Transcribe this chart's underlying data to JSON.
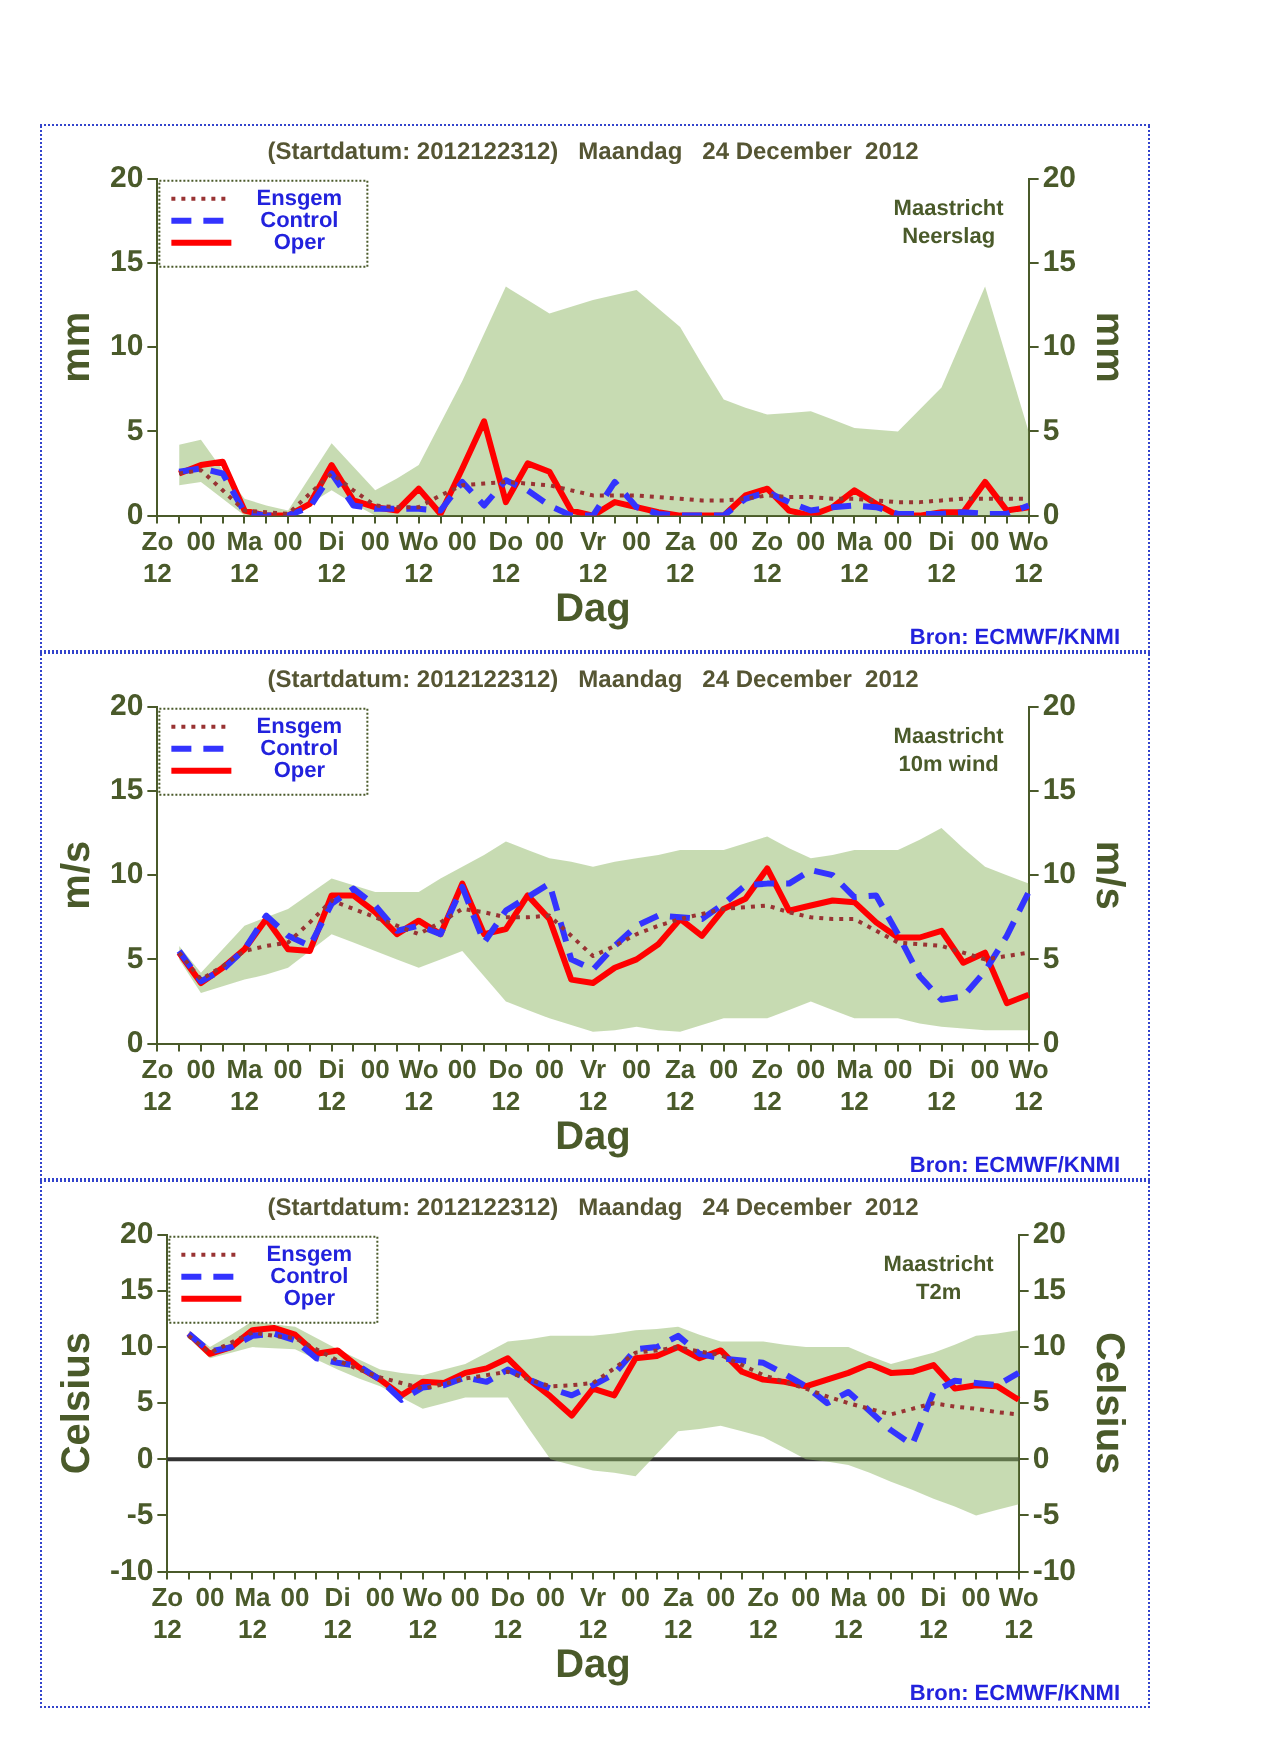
{
  "chart_data": [
    {
      "type": "line",
      "title": "(Startdatum: 2012122312)   Maandag   24 December  2012",
      "xlabel": "Dag",
      "ylabel": "mm",
      "y2label": "mm",
      "annotations": [
        "Maastricht",
        "Neerslag",
        "Bron: ECMWF/KNMI"
      ],
      "categories": [
        "Zo\n12",
        null,
        "00",
        null,
        "Ma\n12",
        null,
        "00",
        null,
        "Di\n12",
        null,
        "00",
        null,
        "Wo\n12",
        null,
        "00",
        null,
        "Do\n12",
        null,
        "00",
        null,
        "Vr\n12",
        null,
        "00",
        null,
        "Za\n12",
        null,
        "00",
        null,
        "Zo\n12",
        null,
        "00",
        null,
        "Ma\n12",
        null,
        "00",
        null,
        "Di\n12",
        null,
        "00",
        null,
        "Wo\n12"
      ],
      "ylim": [
        0,
        20
      ],
      "yticks": [
        0,
        5,
        10,
        15,
        20
      ],
      "y2lim": [
        0,
        20
      ],
      "y2ticks": [
        0,
        5,
        10,
        15,
        20
      ],
      "grid": false,
      "legend": "top left",
      "marker": "none",
      "series": [
        {
          "name": "Ensgem",
          "color": "#993333",
          "line_style": "dotted",
          "values": [
            null,
            2.5,
            2.7,
            1.5,
            0.3,
            0.2,
            0.1,
            1.3,
            2.5,
            1.5,
            0.6,
            0.5,
            0.5,
            1.2,
            1.8,
            1.9,
            2.0,
            1.9,
            1.8,
            1.5,
            1.2,
            1.2,
            1.2,
            1.1,
            1.0,
            0.9,
            0.9,
            1.0,
            1.2,
            1.1,
            1.1,
            1.0,
            1.0,
            0.9,
            0.8,
            0.8,
            0.9,
            1.0,
            1.0,
            1.0,
            1.0
          ],
          "lower": [
            null,
            1.8,
            2.0,
            1.0,
            0,
            0,
            0,
            0.7,
            1.5,
            0.7,
            0,
            0,
            0,
            0,
            0,
            0,
            0,
            0,
            0,
            0,
            0,
            0,
            0,
            0,
            0,
            0,
            0,
            0,
            0,
            0,
            0,
            0,
            0,
            0,
            0,
            0,
            0,
            0,
            0,
            0,
            0
          ],
          "upper": [
            null,
            4.2,
            4.5,
            2.7,
            1.0,
            0.6,
            0.3,
            2.3,
            4.3,
            2.9,
            1.5,
            2.2,
            3.0,
            5.5,
            8.0,
            10.8,
            13.6,
            12.8,
            12.0,
            12.4,
            12.8,
            13.1,
            13.4,
            12.3,
            11.2,
            9.0,
            6.9,
            6.4,
            6.0,
            6.1,
            6.2,
            5.7,
            5.2,
            5.1,
            5.0,
            6.3,
            7.6,
            10.6,
            13.6,
            9.3,
            5.0
          ]
        },
        {
          "name": "Control",
          "color": "#3333ff",
          "line_style": "dashed",
          "values": [
            null,
            2.6,
            2.8,
            2.5,
            0.2,
            0,
            0,
            0.5,
            2.5,
            0.6,
            0.4,
            0.4,
            0.4,
            0.3,
            2.0,
            0.6,
            2.1,
            1.5,
            0.6,
            0,
            0,
            2.0,
            0.5,
            0.1,
            0,
            0,
            0,
            1.0,
            1.4,
            0.8,
            0.3,
            0.5,
            0.6,
            0.5,
            0.1,
            0.1,
            0.1,
            0.2,
            0.1,
            0.1,
            0.6
          ]
        },
        {
          "name": "Oper",
          "color": "#ff0000",
          "line_style": "solid",
          "values": [
            null,
            2.5,
            3.0,
            3.2,
            0.3,
            0,
            0,
            0.7,
            3.0,
            0.9,
            0.5,
            0.3,
            1.6,
            0.1,
            2.8,
            5.6,
            0.8,
            3.1,
            2.6,
            0.3,
            0,
            0.8,
            0.5,
            0.2,
            0,
            0,
            0,
            1.2,
            1.6,
            0.3,
            0,
            0.5,
            1.5,
            0.7,
            0,
            0,
            0.2,
            0.2,
            2.0,
            0.3,
            0.5
          ]
        }
      ]
    },
    {
      "type": "line",
      "title": "(Startdatum: 2012122312)   Maandag   24 December  2012",
      "xlabel": "Dag",
      "ylabel": "m/s",
      "y2label": "m/s",
      "annotations": [
        "Maastricht",
        "10m wind",
        "Bron: ECMWF/KNMI"
      ],
      "categories": [
        "Zo\n12",
        null,
        "00",
        null,
        "Ma\n12",
        null,
        "00",
        null,
        "Di\n12",
        null,
        "00",
        null,
        "Wo\n12",
        null,
        "00",
        null,
        "Do\n12",
        null,
        "00",
        null,
        "Vr\n12",
        null,
        "00",
        null,
        "Za\n12",
        null,
        "00",
        null,
        "Zo\n12",
        null,
        "00",
        null,
        "Ma\n12",
        null,
        "00",
        null,
        "Di\n12",
        null,
        "00",
        null,
        "Wo\n12"
      ],
      "ylim": [
        0,
        20
      ],
      "yticks": [
        0,
        5,
        10,
        15,
        20
      ],
      "y2lim": [
        0,
        20
      ],
      "y2ticks": [
        0,
        5,
        10,
        15,
        20
      ],
      "grid": false,
      "legend": "top left",
      "marker": "none",
      "series": [
        {
          "name": "Ensgem",
          "color": "#993333",
          "line_style": "dotted",
          "values": [
            null,
            5.4,
            3.8,
            4.6,
            5.5,
            5.8,
            6.0,
            7.2,
            8.5,
            8.0,
            7.5,
            7.0,
            6.5,
            7.2,
            8.0,
            7.8,
            7.5,
            7.5,
            7.6,
            6.4,
            5.2,
            5.8,
            6.5,
            7.0,
            7.4,
            7.7,
            8.0,
            8.1,
            8.2,
            7.8,
            7.5,
            7.4,
            7.4,
            6.7,
            6.0,
            5.9,
            5.8,
            5.4,
            5.0,
            5.2,
            5.4
          ],
          "lower": [
            null,
            5.0,
            3.0,
            3.4,
            3.8,
            4.1,
            4.5,
            5.5,
            6.5,
            6.0,
            5.5,
            5.0,
            4.5,
            5.0,
            5.5,
            4.0,
            2.5,
            2.0,
            1.5,
            1.1,
            0.7,
            0.8,
            1.0,
            0.8,
            0.7,
            1.1,
            1.5,
            1.5,
            1.5,
            2.0,
            2.5,
            2.0,
            1.5,
            1.5,
            1.5,
            1.2,
            1.0,
            0.9,
            0.8,
            0.8,
            0.8
          ],
          "upper": [
            null,
            5.8,
            4.2,
            5.6,
            7.0,
            7.5,
            8.0,
            8.9,
            9.8,
            9.4,
            9.0,
            9.0,
            9.0,
            9.8,
            10.5,
            11.2,
            12.0,
            11.5,
            11.0,
            10.8,
            10.5,
            10.8,
            11.0,
            11.2,
            11.5,
            11.5,
            11.5,
            11.9,
            12.3,
            11.6,
            11.0,
            11.2,
            11.5,
            11.5,
            11.5,
            12.1,
            12.8,
            11.6,
            10.5,
            10.0,
            9.5
          ]
        },
        {
          "name": "Control",
          "color": "#3333ff",
          "line_style": "dashed",
          "values": [
            null,
            5.5,
            3.7,
            4.4,
            5.6,
            7.6,
            6.4,
            5.8,
            8.3,
            9.2,
            8.2,
            6.7,
            7.0,
            6.5,
            9.3,
            6.0,
            7.9,
            8.7,
            9.5,
            5.0,
            4.4,
            5.8,
            7.0,
            7.6,
            7.5,
            7.4,
            8.3,
            9.4,
            9.5,
            9.5,
            10.3,
            10.0,
            8.7,
            8.8,
            6.5,
            4.0,
            2.6,
            2.8,
            4.3,
            6.4,
            9.0
          ]
        },
        {
          "name": "Oper",
          "color": "#ff0000",
          "line_style": "solid",
          "values": [
            null,
            5.4,
            3.6,
            4.5,
            5.6,
            7.4,
            5.6,
            5.5,
            8.8,
            8.8,
            7.8,
            6.5,
            7.3,
            6.5,
            9.5,
            6.5,
            6.8,
            8.8,
            7.4,
            3.8,
            3.6,
            4.5,
            5.0,
            5.9,
            7.4,
            6.4,
            8.0,
            8.6,
            10.4,
            7.9,
            8.2,
            8.5,
            8.4,
            7.2,
            6.3,
            6.3,
            6.7,
            4.8,
            5.4,
            2.4,
            2.9
          ]
        }
      ]
    },
    {
      "type": "line",
      "title": "(Startdatum: 2012122312)   Maandag   24 December  2012",
      "xlabel": "Dag",
      "ylabel": "Celsius",
      "y2label": "Celsius",
      "annotations": [
        "Maastricht",
        "T2m",
        "Bron: ECMWF/KNMI"
      ],
      "categories": [
        "Zo\n12",
        null,
        "00",
        null,
        "Ma\n12",
        null,
        "00",
        null,
        "Di\n12",
        null,
        "00",
        null,
        "Wo\n12",
        null,
        "00",
        null,
        "Do\n12",
        null,
        "00",
        null,
        "Vr\n12",
        null,
        "00",
        null,
        "Za\n12",
        null,
        "00",
        null,
        "Zo\n12",
        null,
        "00",
        null,
        "Ma\n12",
        null,
        "00",
        null,
        "Di\n12",
        null,
        "00",
        null,
        "Wo\n12"
      ],
      "ylim": [
        -10,
        20
      ],
      "yticks": [
        -10,
        -5,
        0,
        5,
        10,
        15,
        20
      ],
      "y2lim": [
        -10,
        20
      ],
      "y2ticks": [
        -10,
        -5,
        0,
        5,
        10,
        15,
        20
      ],
      "grid": false,
      "legend": "top left",
      "marker": "none",
      "ref_lines": [
        {
          "axis": "y",
          "value": 0,
          "color": "#333333"
        }
      ],
      "series": [
        {
          "name": "Ensgem",
          "color": "#993333",
          "line_style": "dotted",
          "values": [
            null,
            11.0,
            9.5,
            10.4,
            11.3,
            11.0,
            10.8,
            9.8,
            8.8,
            8.0,
            7.3,
            6.8,
            6.3,
            6.7,
            7.2,
            7.5,
            7.8,
            7.1,
            6.5,
            6.6,
            6.8,
            8.1,
            9.5,
            9.7,
            10.0,
            9.6,
            9.3,
            8.4,
            7.5,
            6.9,
            6.3,
            5.6,
            5.0,
            4.5,
            4.0,
            4.5,
            5.0,
            4.7,
            4.5,
            4.2,
            4.0
          ],
          "lower": [
            null,
            10.8,
            9.0,
            9.5,
            10.0,
            9.9,
            9.8,
            8.9,
            8.0,
            7.2,
            6.5,
            5.5,
            4.5,
            5.0,
            5.5,
            5.5,
            5.5,
            2.7,
            0,
            -0.5,
            -1.0,
            -1.2,
            -1.5,
            0.5,
            2.5,
            2.7,
            3.0,
            2.5,
            2.0,
            1.0,
            0,
            -0.2,
            -0.5,
            -1.2,
            -2.0,
            -2.7,
            -3.5,
            -4.2,
            -5.0,
            -4.5,
            -4.0
          ],
          "upper": [
            null,
            11.5,
            10.0,
            11.1,
            12.3,
            12.0,
            11.8,
            10.8,
            9.8,
            8.9,
            8.0,
            7.7,
            7.5,
            8.0,
            8.5,
            9.5,
            10.5,
            10.7,
            11.0,
            11.0,
            11.0,
            11.2,
            11.5,
            11.6,
            11.8,
            11.1,
            10.5,
            10.5,
            10.5,
            10.2,
            10.0,
            10.0,
            10.0,
            9.2,
            8.5,
            9.0,
            9.5,
            10.2,
            11.0,
            11.2,
            11.5
          ]
        },
        {
          "name": "Control",
          "color": "#3333ff",
          "line_style": "dashed",
          "values": [
            null,
            11.2,
            9.6,
            10.0,
            11.0,
            11.2,
            10.6,
            9.0,
            8.6,
            8.3,
            7.1,
            5.3,
            6.4,
            6.6,
            7.3,
            6.9,
            8.0,
            7.1,
            6.3,
            5.7,
            6.6,
            7.6,
            9.8,
            10.0,
            11.0,
            9.4,
            9.0,
            8.8,
            8.6,
            7.6,
            6.5,
            5.0,
            6.0,
            4.3,
            2.6,
            1.3,
            6.0,
            7.0,
            6.8,
            6.6,
            7.7
          ]
        },
        {
          "name": "Oper",
          "color": "#ff0000",
          "line_style": "solid",
          "values": [
            null,
            11.2,
            9.4,
            10.0,
            11.5,
            11.7,
            11.1,
            9.4,
            9.7,
            8.2,
            7.1,
            5.7,
            6.9,
            6.8,
            7.7,
            8.1,
            9.0,
            7.1,
            5.6,
            3.9,
            6.3,
            5.7,
            9.0,
            9.2,
            10.0,
            9.0,
            9.7,
            7.8,
            7.1,
            6.9,
            6.5,
            7.1,
            7.7,
            8.5,
            7.7,
            7.8,
            8.4,
            6.3,
            6.6,
            6.5,
            5.3
          ]
        }
      ]
    }
  ]
}
